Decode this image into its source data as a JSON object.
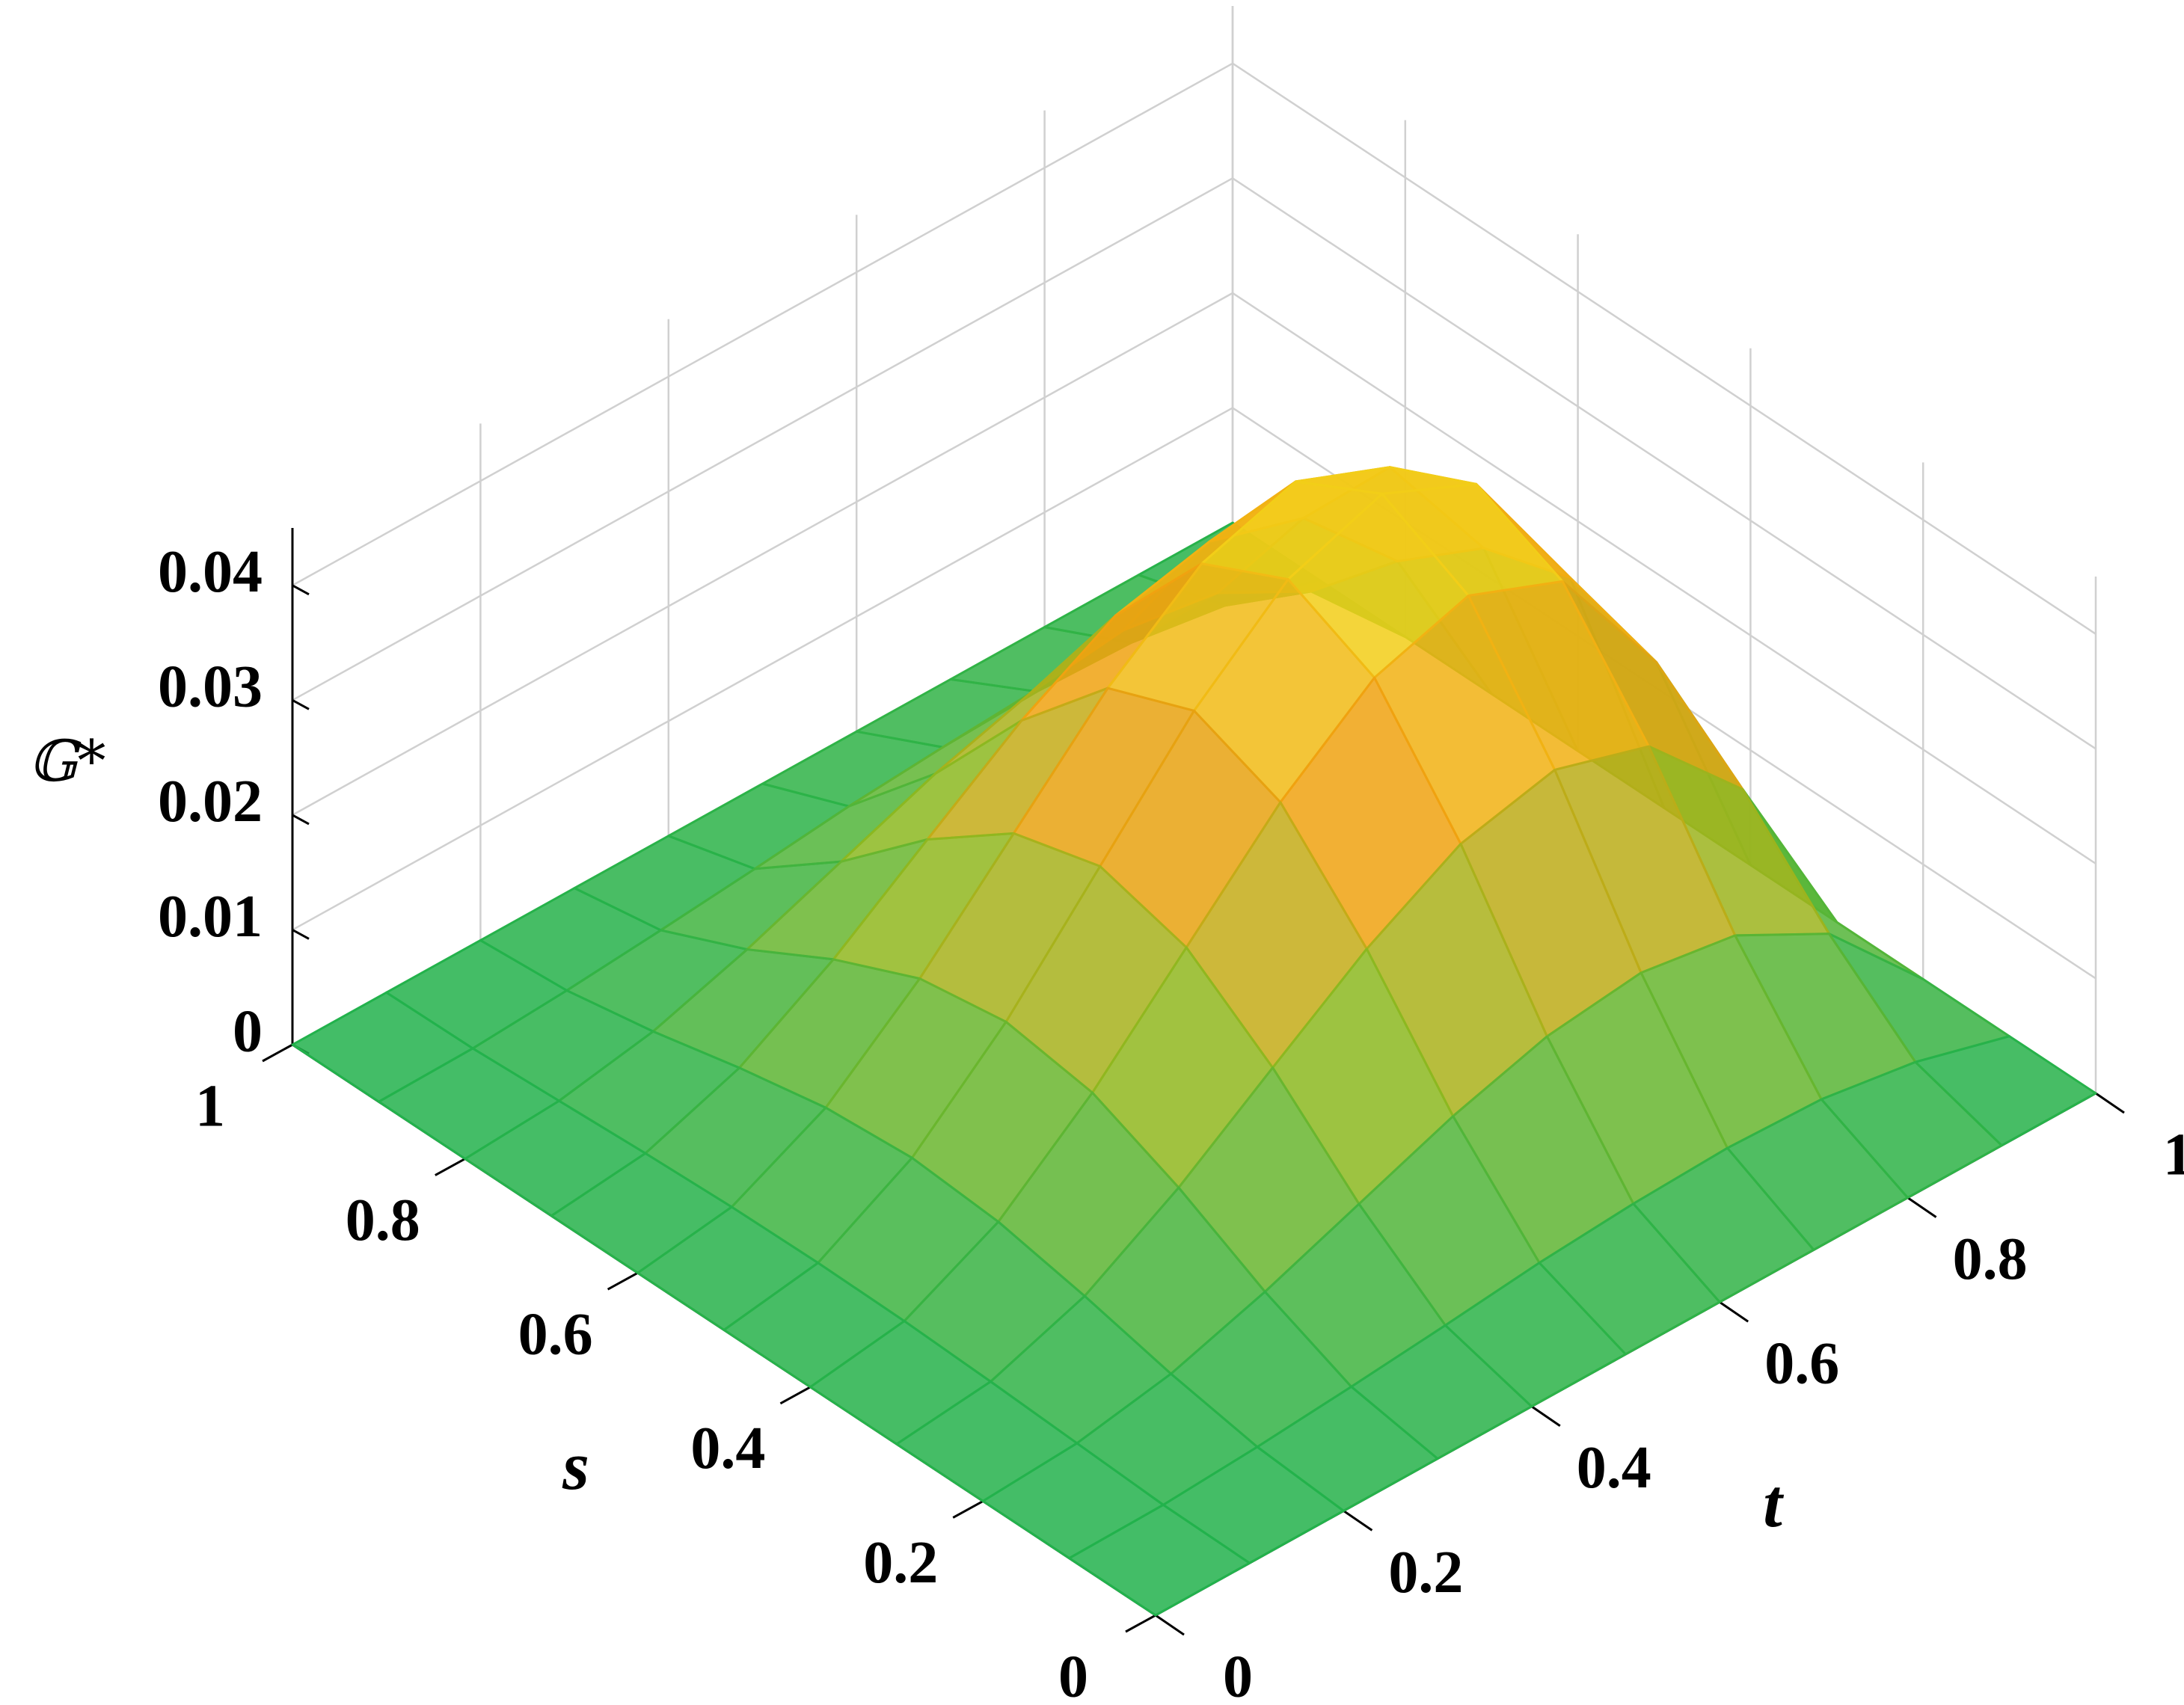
{
  "chart_data": {
    "type": "surface",
    "xlabel": "t",
    "ylabel": "s",
    "zlabel": "𝔾*",
    "x": [
      0,
      0.1,
      0.2,
      0.3,
      0.4,
      0.5,
      0.6,
      0.7,
      0.8,
      0.9,
      1
    ],
    "y": [
      0,
      0.1,
      0.2,
      0.3,
      0.4,
      0.5,
      0.6,
      0.7,
      0.8,
      0.9,
      1
    ],
    "z": [
      [
        0,
        0,
        0,
        0,
        0,
        0,
        0,
        0,
        0,
        0,
        0
      ],
      [
        0,
        0.0001,
        0.0006,
        0.0013,
        0.0021,
        0.003,
        0.0036,
        0.0039,
        0.0036,
        0.0023,
        0
      ],
      [
        0,
        0.0005,
        0.002,
        0.0046,
        0.0077,
        0.0108,
        0.0132,
        0.0142,
        0.0129,
        0.0085,
        0
      ],
      [
        0,
        0.0009,
        0.0038,
        0.0087,
        0.0146,
        0.0204,
        0.025,
        0.0269,
        0.0244,
        0.0161,
        0
      ],
      [
        0,
        0.0012,
        0.0053,
        0.012,
        0.0201,
        0.0282,
        0.0345,
        0.0371,
        0.0338,
        0.0222,
        0
      ],
      [
        0,
        0.0013,
        0.0059,
        0.0132,
        0.0222,
        0.0312,
        0.0381,
        0.041,
        0.0373,
        0.0246,
        0
      ],
      [
        0,
        0.0012,
        0.0053,
        0.012,
        0.0201,
        0.0282,
        0.0345,
        0.0371,
        0.0338,
        0.0222,
        0
      ],
      [
        0,
        0.0009,
        0.0038,
        0.0087,
        0.0146,
        0.0204,
        0.025,
        0.0269,
        0.0244,
        0.0161,
        0
      ],
      [
        0,
        0.0005,
        0.002,
        0.0046,
        0.0077,
        0.0108,
        0.0132,
        0.0142,
        0.0129,
        0.0085,
        0
      ],
      [
        0,
        0.0001,
        0.0006,
        0.0013,
        0.0021,
        0.003,
        0.0036,
        0.0039,
        0.0036,
        0.0023,
        0
      ],
      [
        0,
        0,
        0,
        0,
        0,
        0,
        0,
        0,
        0,
        0,
        0
      ]
    ],
    "xlim": [
      0,
      1
    ],
    "ylim": [
      0,
      1
    ],
    "zlim": [
      0,
      0.045
    ],
    "xticks": [
      0,
      0.2,
      0.4,
      0.6,
      0.8,
      1
    ],
    "yticks": [
      0,
      0.2,
      0.4,
      0.6,
      0.8,
      1
    ],
    "zticks": [
      0,
      0.01,
      0.02,
      0.03,
      0.04
    ],
    "grid": true,
    "colormap": [
      "#22b24c",
      "#8cb820",
      "#f0a010",
      "#f2d81a"
    ]
  }
}
